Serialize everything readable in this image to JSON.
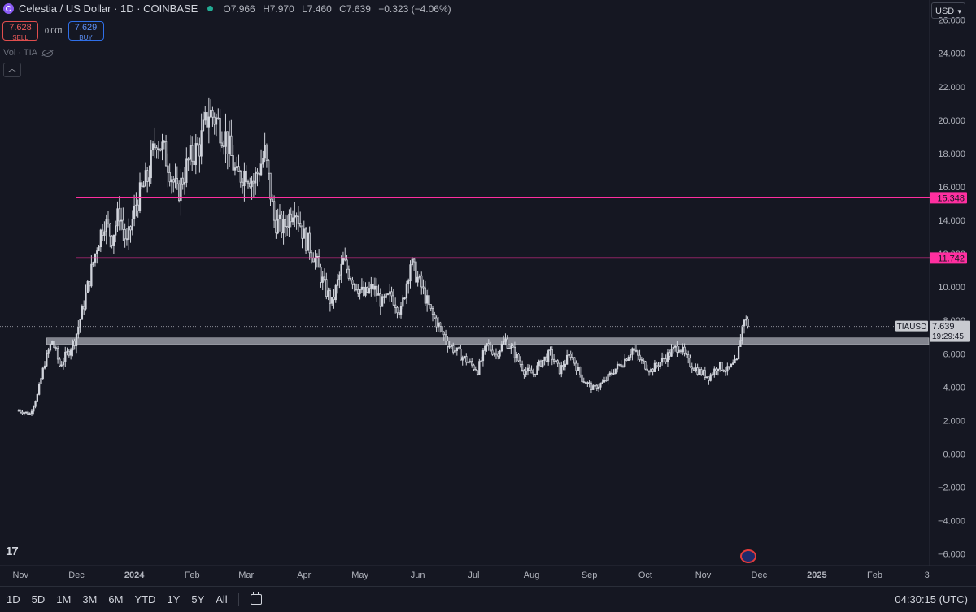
{
  "header": {
    "title": "Celestia / US Dollar · 1D · COINBASE",
    "ohlc": {
      "o_label": "O",
      "o": "7.966",
      "h_label": "H",
      "h": "7.970",
      "l_label": "L",
      "l": "7.460",
      "c_label": "C",
      "c": "7.639",
      "change": "−0.323 (−4.06%)"
    }
  },
  "trade": {
    "sell_price": "7.628",
    "sell_label": "SELL",
    "spread": "0.001",
    "buy_price": "7.629",
    "buy_label": "BUY"
  },
  "volume_label": "Vol · TIA",
  "currency": "USD",
  "tv_logo": "17",
  "bottom_bar": {
    "ranges": [
      "1D",
      "5D",
      "1M",
      "3M",
      "6M",
      "YTD",
      "1Y",
      "5Y",
      "All"
    ],
    "clock": "04:30:15 (UTC)"
  },
  "colors": {
    "background": "#151722",
    "candle": "#d1d4dc",
    "level_line": "#ff2fa0",
    "support_band": "#9598a1"
  },
  "icons": [
    "celestia-logo-icon",
    "eye-icon",
    "chevron-up-icon",
    "calendar-icon",
    "flag-icon"
  ],
  "chart_data": {
    "type": "candlestick",
    "symbol": "TIAUSD",
    "y_ticks": [
      26,
      24,
      22,
      20,
      18,
      16,
      14,
      12,
      10,
      8,
      6,
      4,
      2,
      0,
      -2,
      -4,
      -6
    ],
    "y_tick_labels": [
      "26.000",
      "24.000",
      "22.000",
      "20.000",
      "18.000",
      "16.000",
      "14.000",
      "12.000",
      "10.000",
      "8.000",
      "6.000",
      "4.000",
      "2.000",
      "0.000",
      "−2.000",
      "−4.000",
      "−6.000"
    ],
    "ylim": [
      -6.7,
      27.2
    ],
    "x_labels": [
      "Nov",
      "Dec",
      "2024",
      "Feb",
      "Mar",
      "Apr",
      "May",
      "Jun",
      "Jul",
      "Aug",
      "Sep",
      "Oct",
      "Nov",
      "Dec",
      "2025",
      "Feb",
      "3"
    ],
    "x_label_dates": [
      "2023-11-01",
      "2023-12-01",
      "2024-01-01",
      "2024-02-01",
      "2024-03-01",
      "2024-04-01",
      "2024-05-01",
      "2024-06-01",
      "2024-07-01",
      "2024-08-01",
      "2024-09-01",
      "2024-10-01",
      "2024-11-01",
      "2024-12-01",
      "2025-01-01",
      "2025-02-01",
      "2025-03-01"
    ],
    "x_range": [
      "2023-10-21",
      "2025-03-02"
    ],
    "date_range": [
      "2023-10-31",
      "2024-11-25"
    ],
    "close_path": [
      [
        "2023-10-31",
        2.6
      ],
      [
        "2023-11-06",
        2.4
      ],
      [
        "2023-11-10",
        3.5
      ],
      [
        "2023-11-14",
        5.5
      ],
      [
        "2023-11-18",
        6.8
      ],
      [
        "2023-11-22",
        5.3
      ],
      [
        "2023-11-26",
        6.0
      ],
      [
        "2023-11-30",
        6.8
      ],
      [
        "2023-12-04",
        8.5
      ],
      [
        "2023-12-08",
        10.5
      ],
      [
        "2023-12-12",
        12.5
      ],
      [
        "2023-12-16",
        14.0
      ],
      [
        "2023-12-20",
        13.0
      ],
      [
        "2023-12-24",
        14.5
      ],
      [
        "2023-12-28",
        12.5
      ],
      [
        "2024-01-02",
        15.0
      ],
      [
        "2024-01-08",
        16.5
      ],
      [
        "2024-01-13",
        19.0
      ],
      [
        "2024-01-19",
        17.5
      ],
      [
        "2024-01-24",
        15.5
      ],
      [
        "2024-01-30",
        17.5
      ],
      [
        "2024-02-05",
        18.5
      ],
      [
        "2024-02-10",
        20.5
      ],
      [
        "2024-02-14",
        20.0
      ],
      [
        "2024-02-19",
        19.0
      ],
      [
        "2024-02-25",
        16.5
      ],
      [
        "2024-03-01",
        17.0
      ],
      [
        "2024-03-05",
        16.3
      ],
      [
        "2024-03-11",
        18.0
      ],
      [
        "2024-03-16",
        14.0
      ],
      [
        "2024-03-21",
        13.5
      ],
      [
        "2024-03-27",
        15.0
      ],
      [
        "2024-04-01",
        13.0
      ],
      [
        "2024-04-06",
        12.0
      ],
      [
        "2024-04-12",
        10.0
      ],
      [
        "2024-04-16",
        9.0
      ],
      [
        "2024-04-22",
        11.5
      ],
      [
        "2024-04-27",
        10.5
      ],
      [
        "2024-05-03",
        9.5
      ],
      [
        "2024-05-08",
        10.0
      ],
      [
        "2024-05-13",
        9.0
      ],
      [
        "2024-05-18",
        9.5
      ],
      [
        "2024-05-23",
        8.5
      ],
      [
        "2024-05-28",
        11.5
      ],
      [
        "2024-06-03",
        10.0
      ],
      [
        "2024-06-08",
        8.5
      ],
      [
        "2024-06-13",
        7.5
      ],
      [
        "2024-06-18",
        6.5
      ],
      [
        "2024-06-23",
        6.0
      ],
      [
        "2024-06-28",
        5.5
      ],
      [
        "2024-07-03",
        5.0
      ],
      [
        "2024-07-08",
        6.5
      ],
      [
        "2024-07-13",
        6.0
      ],
      [
        "2024-07-18",
        6.8
      ],
      [
        "2024-07-23",
        6.0
      ],
      [
        "2024-07-28",
        5.0
      ],
      [
        "2024-08-02",
        4.8
      ],
      [
        "2024-08-06",
        5.5
      ],
      [
        "2024-08-11",
        6.0
      ],
      [
        "2024-08-16",
        5.0
      ],
      [
        "2024-08-22",
        6.0
      ],
      [
        "2024-08-28",
        4.5
      ],
      [
        "2024-09-03",
        3.9
      ],
      [
        "2024-09-09",
        4.3
      ],
      [
        "2024-09-14",
        5.0
      ],
      [
        "2024-09-19",
        5.5
      ],
      [
        "2024-09-24",
        6.3
      ],
      [
        "2024-09-29",
        5.5
      ],
      [
        "2024-10-04",
        5.0
      ],
      [
        "2024-10-09",
        5.5
      ],
      [
        "2024-10-14",
        6.0
      ],
      [
        "2024-10-19",
        6.5
      ],
      [
        "2024-10-24",
        5.5
      ],
      [
        "2024-10-29",
        5.0
      ],
      [
        "2024-11-04",
        4.6
      ],
      [
        "2024-11-09",
        5.3
      ],
      [
        "2024-11-14",
        5.0
      ],
      [
        "2024-11-19",
        5.5
      ],
      [
        "2024-11-21",
        7.0
      ],
      [
        "2024-11-23",
        8.2
      ],
      [
        "2024-11-25",
        7.639
      ]
    ],
    "horizontal_levels": [
      {
        "value": 15.348,
        "label": "15.348",
        "color": "#ff2fa0",
        "start": "2023-12-01"
      },
      {
        "value": 11.742,
        "label": "11.742",
        "color": "#ff2fa0",
        "start": "2023-12-01"
      }
    ],
    "support_band": {
      "low": 6.55,
      "high": 6.95,
      "start": "2023-11-15"
    },
    "last_price": {
      "label": "TIAUSD",
      "value": "7.639",
      "numeric": 7.639,
      "countdown": "19:29:45"
    }
  }
}
